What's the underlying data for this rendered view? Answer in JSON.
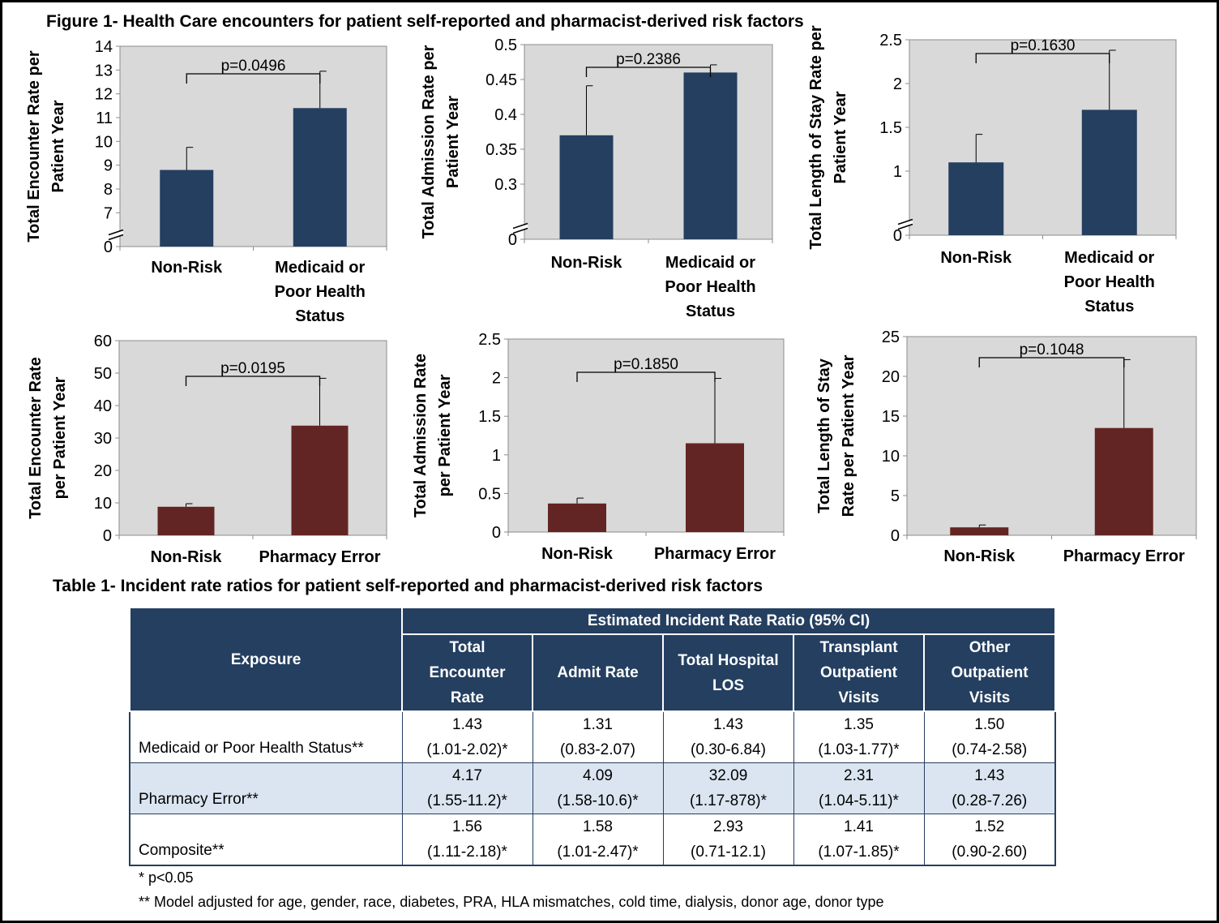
{
  "figure_title": "Figure 1- Health Care encounters for patient self-reported and pharmacist-derived risk factors",
  "colors": {
    "navy": "#243f60",
    "maroon": "#632523",
    "plot_bg": "#d9d9d9",
    "table_header": "#243f60",
    "table_shade": "#dbe5f1"
  },
  "chart_data": [
    {
      "type": "bar",
      "ylabel_lines": [
        "Total Encounter Rate per",
        "Patient Year"
      ],
      "categories": [
        [
          "Non-Risk"
        ],
        [
          "Medicaid or",
          "Poor Health",
          "Status"
        ]
      ],
      "values": [
        8.8,
        11.4
      ],
      "errors": [
        0.95,
        1.55
      ],
      "yticks": [
        "7",
        "8",
        "9",
        "10",
        "11",
        "12",
        "13",
        "14"
      ],
      "axis_break": {
        "below_label": "0",
        "range": [
          6.5,
          14
        ]
      },
      "p_value": "p=0.0496",
      "color": "#243f60"
    },
    {
      "type": "bar",
      "ylabel_lines": [
        "Total Admission Rate per",
        "Patient Year"
      ],
      "categories": [
        [
          "Non-Risk"
        ],
        [
          "Medicaid or",
          "Poor Health",
          "Status"
        ]
      ],
      "values": [
        0.37,
        0.46
      ],
      "errors": [
        0.071,
        0.011
      ],
      "yticks": [
        "0.3",
        "0.35",
        "0.4",
        "0.45",
        "0.5"
      ],
      "axis_break": {
        "below_label": "0",
        "range": [
          0.25,
          0.5
        ]
      },
      "p_value": "p=0.2386",
      "color": "#243f60"
    },
    {
      "type": "bar",
      "ylabel_lines": [
        "Total Length of Stay Rate per",
        "Patient Year"
      ],
      "categories": [
        [
          "Non-Risk"
        ],
        [
          "Medicaid or",
          "Poor Health",
          "Status"
        ]
      ],
      "values": [
        1.1,
        1.7
      ],
      "errors": [
        0.32,
        0.68
      ],
      "yticks": [
        "1",
        "1.5",
        "2",
        "2.5"
      ],
      "axis_break": {
        "below_label": "0",
        "range": [
          0.5,
          2.5
        ]
      },
      "p_value": "p=0.1630",
      "color": "#243f60"
    },
    {
      "type": "bar",
      "ylabel_lines": [
        "Total Encounter Rate",
        "per Patient Year"
      ],
      "categories": [
        [
          "Non-Risk"
        ],
        [
          "Pharmacy Error"
        ]
      ],
      "values": [
        8.8,
        33.8
      ],
      "errors": [
        0.95,
        14.6
      ],
      "yticks": [
        "0",
        "10",
        "20",
        "30",
        "40",
        "50",
        "60"
      ],
      "range": [
        0,
        60
      ],
      "p_value": "p=0.0195",
      "color": "#632523"
    },
    {
      "type": "bar",
      "ylabel_lines": [
        "Total Admission Rate",
        "per Patient Year"
      ],
      "categories": [
        [
          "Non-Risk"
        ],
        [
          "Pharmacy Error"
        ]
      ],
      "values": [
        0.37,
        1.15
      ],
      "errors": [
        0.07,
        0.84
      ],
      "yticks": [
        "0",
        "0.5",
        "1",
        "1.5",
        "2",
        "2.5"
      ],
      "range": [
        0,
        2.5
      ],
      "p_value": "p=0.1850",
      "color": "#632523"
    },
    {
      "type": "bar",
      "ylabel_lines": [
        "Total Length of Stay",
        "Rate per Patient Year"
      ],
      "categories": [
        [
          "Non-Risk"
        ],
        [
          "Pharmacy Error"
        ]
      ],
      "values": [
        1.0,
        13.5
      ],
      "errors": [
        0.3,
        8.6
      ],
      "yticks": [
        "0",
        "5",
        "10",
        "15",
        "20",
        "25"
      ],
      "range": [
        0,
        25
      ],
      "p_value": "p=0.1048",
      "color": "#632523"
    }
  ],
  "table": {
    "title": "Table 1- Incident rate ratios for patient self-reported and pharmacist-derived risk factors",
    "header_exposure": "Exposure",
    "header_group": "Estimated Incident Rate Ratio (95% CI)",
    "columns": [
      [
        "Total",
        "Encounter",
        "Rate"
      ],
      [
        "Admit Rate"
      ],
      [
        "Total Hospital",
        "LOS"
      ],
      [
        "Transplant",
        "Outpatient",
        "Visits"
      ],
      [
        "Other",
        "Outpatient",
        "Visits"
      ]
    ],
    "rows": [
      {
        "exposure": "Medicaid or Poor Health Status**",
        "cells": [
          [
            "1.43",
            "(1.01-2.02)*"
          ],
          [
            "1.31",
            "(0.83-2.07)"
          ],
          [
            "1.43",
            "(0.30-6.84)"
          ],
          [
            "1.35",
            "(1.03-1.77)*"
          ],
          [
            "1.50",
            "(0.74-2.58)"
          ]
        ]
      },
      {
        "exposure": "Pharmacy Error**",
        "cells": [
          [
            "4.17",
            "(1.55-11.2)*"
          ],
          [
            "4.09",
            "(1.58-10.6)*"
          ],
          [
            "32.09",
            "(1.17-878)*"
          ],
          [
            "2.31",
            "(1.04-5.11)*"
          ],
          [
            "1.43",
            "(0.28-7.26)"
          ]
        ]
      },
      {
        "exposure": "Composite**",
        "cells": [
          [
            "1.56",
            "(1.11-2.18)*"
          ],
          [
            "1.58",
            "(1.01-2.47)*"
          ],
          [
            "2.93",
            "(0.71-12.1)"
          ],
          [
            "1.41",
            "(1.07-1.85)*"
          ],
          [
            "1.52",
            "(0.90-2.60)"
          ]
        ]
      }
    ],
    "footnotes": [
      "* p<0.05",
      "** Model adjusted for age, gender, race, diabetes, PRA, HLA mismatches, cold time, dialysis, donor age, donor type"
    ]
  }
}
